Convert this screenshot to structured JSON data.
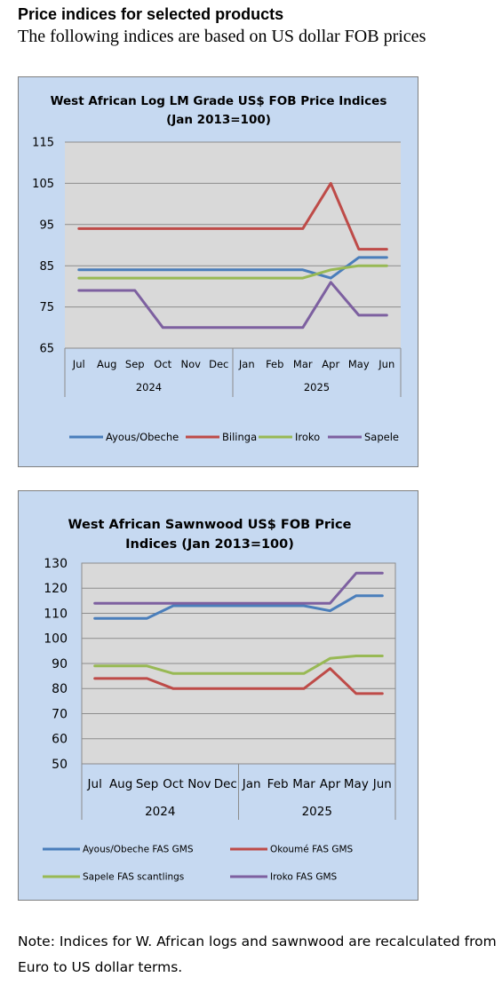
{
  "heading": "Price indices for selected products",
  "subheading": "The following indices are based on US dollar FOB prices",
  "note": "Note: Indices for W. African logs and sawnwood are recalculated from Euro to US dollar terms.",
  "chart_data": [
    {
      "type": "line",
      "title": "West African Log LM Grade US$ FOB Price Indices (Jan 2013=100)",
      "title_lines": [
        "West African Log LM Grade US$ FOB Price Indices",
        "(Jan 2013=100)"
      ],
      "categories": [
        "Jul",
        "Aug",
        "Sep",
        "Oct",
        "Nov",
        "Dec",
        "Jan",
        "Feb",
        "Mar",
        "Apr",
        "May",
        "Jun"
      ],
      "year_groups": [
        {
          "label": "2024",
          "count": 6
        },
        {
          "label": "2025",
          "count": 6
        }
      ],
      "ylim": [
        65,
        115
      ],
      "yticks": [
        65,
        75,
        85,
        95,
        105,
        115
      ],
      "grid": true,
      "legend_position": "bottom",
      "series": [
        {
          "name": "Ayous/Obeche",
          "color": "#4a7ebb",
          "values": [
            84,
            84,
            84,
            84,
            84,
            84,
            84,
            84,
            84,
            82,
            87,
            87
          ]
        },
        {
          "name": "Bilinga",
          "color": "#be4b48",
          "values": [
            94,
            94,
            94,
            94,
            94,
            94,
            94,
            94,
            94,
            105,
            89,
            89
          ]
        },
        {
          "name": "Iroko",
          "color": "#98b954",
          "values": [
            82,
            82,
            82,
            82,
            82,
            82,
            82,
            82,
            82,
            84,
            85,
            85
          ]
        },
        {
          "name": "Sapele",
          "color": "#7d60a0",
          "values": [
            79,
            79,
            79,
            70,
            70,
            70,
            70,
            70,
            70,
            81,
            73,
            73
          ]
        }
      ]
    },
    {
      "type": "line",
      "title": "West African Sawnwood US$ FOB Price Indices (Jan 2013=100)",
      "title_lines": [
        "West African Sawnwood US$ FOB Price",
        "Indices (Jan 2013=100)"
      ],
      "categories": [
        "Jul",
        "Aug",
        "Sep",
        "Oct",
        "Nov",
        "Dec",
        "Jan",
        "Feb",
        "Mar",
        "Apr",
        "May",
        "Jun"
      ],
      "year_groups": [
        {
          "label": "2024",
          "count": 6
        },
        {
          "label": "2025",
          "count": 6
        }
      ],
      "ylim": [
        50,
        130
      ],
      "yticks": [
        50,
        60,
        70,
        80,
        90,
        100,
        110,
        120,
        130
      ],
      "grid": true,
      "legend_position": "bottom",
      "series": [
        {
          "name": "Ayous/Obeche  FAS GMS",
          "color": "#4a7ebb",
          "values": [
            108,
            108,
            108,
            113,
            113,
            113,
            113,
            113,
            113,
            111,
            117,
            117
          ]
        },
        {
          "name": "Okoumé  FAS GMS",
          "color": "#be4b48",
          "values": [
            84,
            84,
            84,
            80,
            80,
            80,
            80,
            80,
            80,
            88,
            78,
            78
          ]
        },
        {
          "name": "Sapele FAS scantlings",
          "color": "#98b954",
          "values": [
            89,
            89,
            89,
            86,
            86,
            86,
            86,
            86,
            86,
            92,
            93,
            93
          ]
        },
        {
          "name": "Iroko FAS GMS",
          "color": "#7d60a0",
          "values": [
            114,
            114,
            114,
            114,
            114,
            114,
            114,
            114,
            114,
            114,
            126,
            126
          ]
        }
      ]
    }
  ]
}
